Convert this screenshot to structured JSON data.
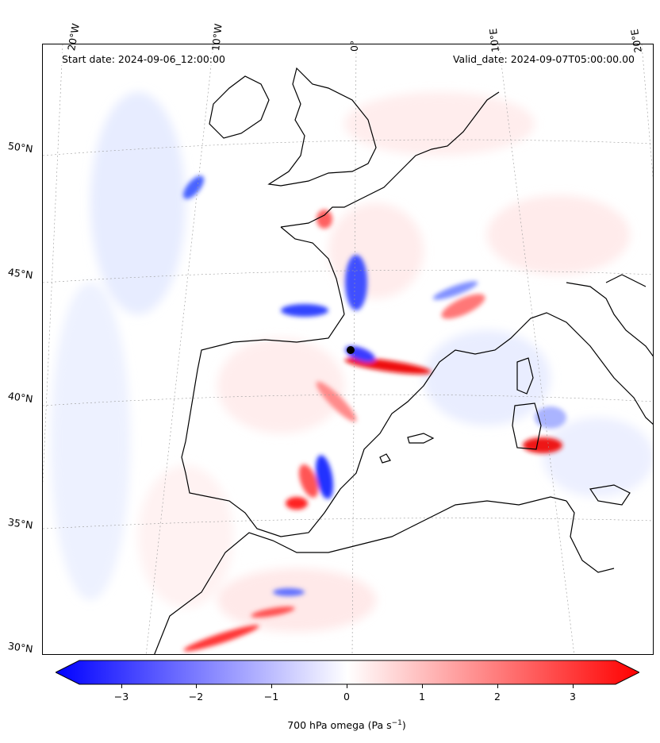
{
  "header": {
    "start_date": "Start date: 2024-09-06_12:00:00",
    "valid_date": "Valid_date: 2024-09-07T05:00:00.00"
  },
  "lon_labels": [
    "20°W",
    "10°W",
    "0°",
    "10°E",
    "20°E"
  ],
  "lat_labels": [
    "50°N",
    "45°N",
    "40°N",
    "35°N",
    "30°N"
  ],
  "colorbar": {
    "ticks": [
      "−3",
      "−2",
      "−1",
      "0",
      "1",
      "2",
      "3"
    ],
    "label": "700 hPa omega (Pa s",
    "label_sup": "−1",
    "label_end": ")",
    "min_color": "#0000ff",
    "mid_color": "#ffffff",
    "max_color": "#ff0000"
  }
}
